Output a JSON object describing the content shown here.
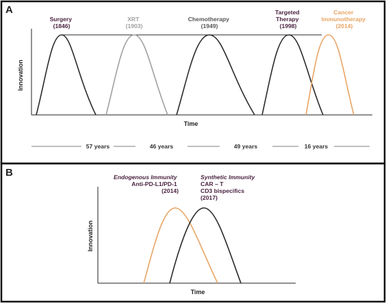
{
  "colors": {
    "dark": "#2a2a2a",
    "purple": "#4a2240",
    "gray": "#a0a0a0",
    "charcoal": "#555555",
    "orange": "#e8a464",
    "frame": "#111111"
  },
  "panel_a": {
    "letter": "A",
    "ylabel": "Innovation",
    "xlabel": "Time",
    "labels": [
      {
        "lines": [
          "Surgery",
          "(1846)"
        ],
        "color": "purple"
      },
      {
        "lines": [
          "XRT",
          "(1903)"
        ],
        "color": "gray"
      },
      {
        "lines": [
          "Chemotherapy",
          "(1949)"
        ],
        "color": "charcoal"
      },
      {
        "lines": [
          "Targeted",
          "Therapy",
          "(1998)"
        ],
        "color": "purple"
      },
      {
        "lines": [
          "Cancer",
          "Immunotherapy",
          "(2014)"
        ],
        "color": "orange"
      }
    ],
    "intervals": [
      "57 years",
      "46 years",
      "49 years",
      "16 years"
    ]
  },
  "panel_b": {
    "letter": "B",
    "ylabel": "Innovation",
    "xlabel": "Time",
    "labels": [
      {
        "italic": "Endogenous Immunity",
        "lines": [
          "Anti-PD-L1/PD-1",
          "(2014)"
        ]
      },
      {
        "italic": "Synthetic Immunity",
        "lines": [
          "CAR – T",
          "CD3 bispecifics",
          "(2017)"
        ]
      }
    ]
  }
}
